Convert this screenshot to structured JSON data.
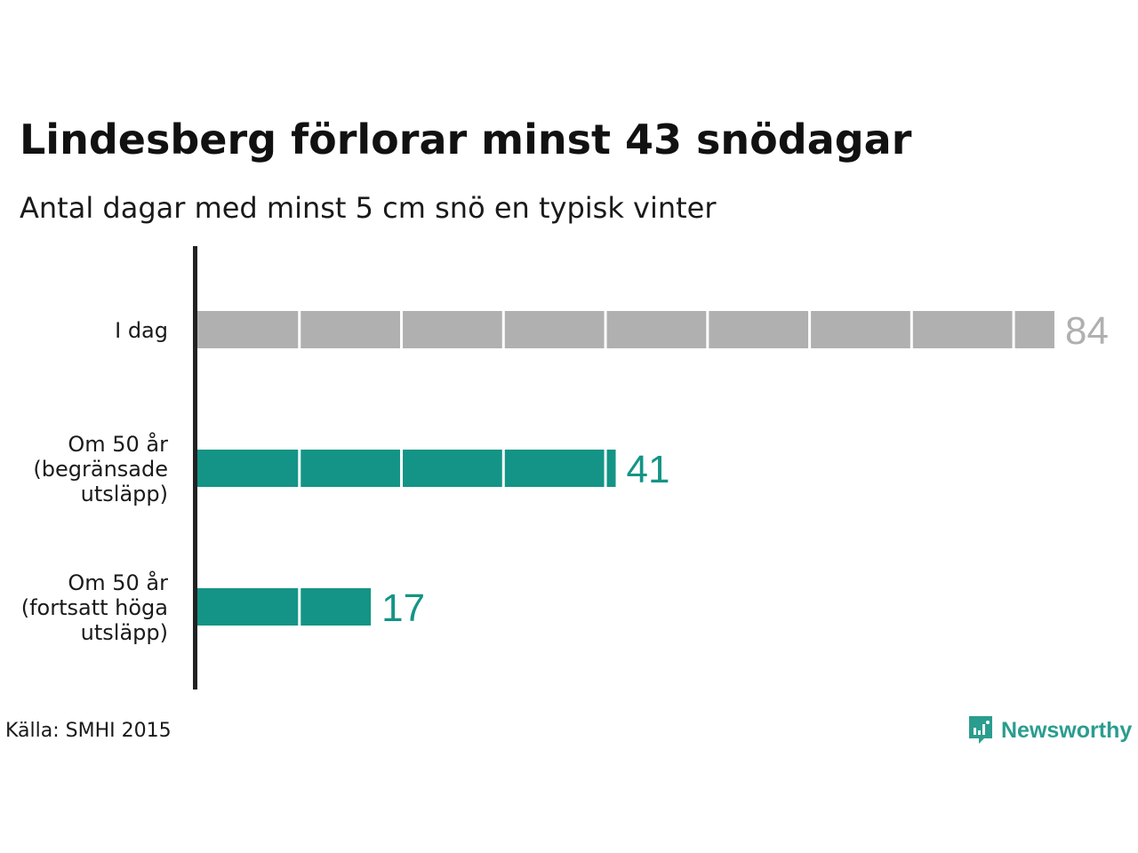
{
  "title": "Lindesberg förlorar minst 43 snödagar",
  "subtitle": "Antal dagar med minst 5 cm snö en typisk vinter",
  "source": "Källa: SMHI 2015",
  "brand": {
    "name": "Newsworthy",
    "icon": "newsworthy-logo-icon",
    "color": "#2a9d8f"
  },
  "colors": {
    "today": "#b0b0b0",
    "future": "#149486",
    "axis": "#222222"
  },
  "chart_data": {
    "type": "bar",
    "orientation": "horizontal",
    "title": "Lindesberg förlorar minst 43 snödagar",
    "subtitle": "Antal dagar med minst 5 cm snö en typisk vinter",
    "categories": [
      "I dag",
      "Om 50 år (begränsade utsläpp)",
      "Om 50 år (fortsatt höga utsläpp)"
    ],
    "category_lines": [
      [
        "I dag"
      ],
      [
        "Om 50 år",
        "(begränsade",
        "utsläpp)"
      ],
      [
        "Om 50 år",
        "(fortsatt höga",
        "utsläpp)"
      ]
    ],
    "values": [
      84,
      41,
      17
    ],
    "value_labels": [
      "84",
      "41",
      "17"
    ],
    "segment_size": 10,
    "xlim": [
      0,
      84
    ],
    "xlabel": "",
    "ylabel": "",
    "grid": false,
    "legend": false
  }
}
